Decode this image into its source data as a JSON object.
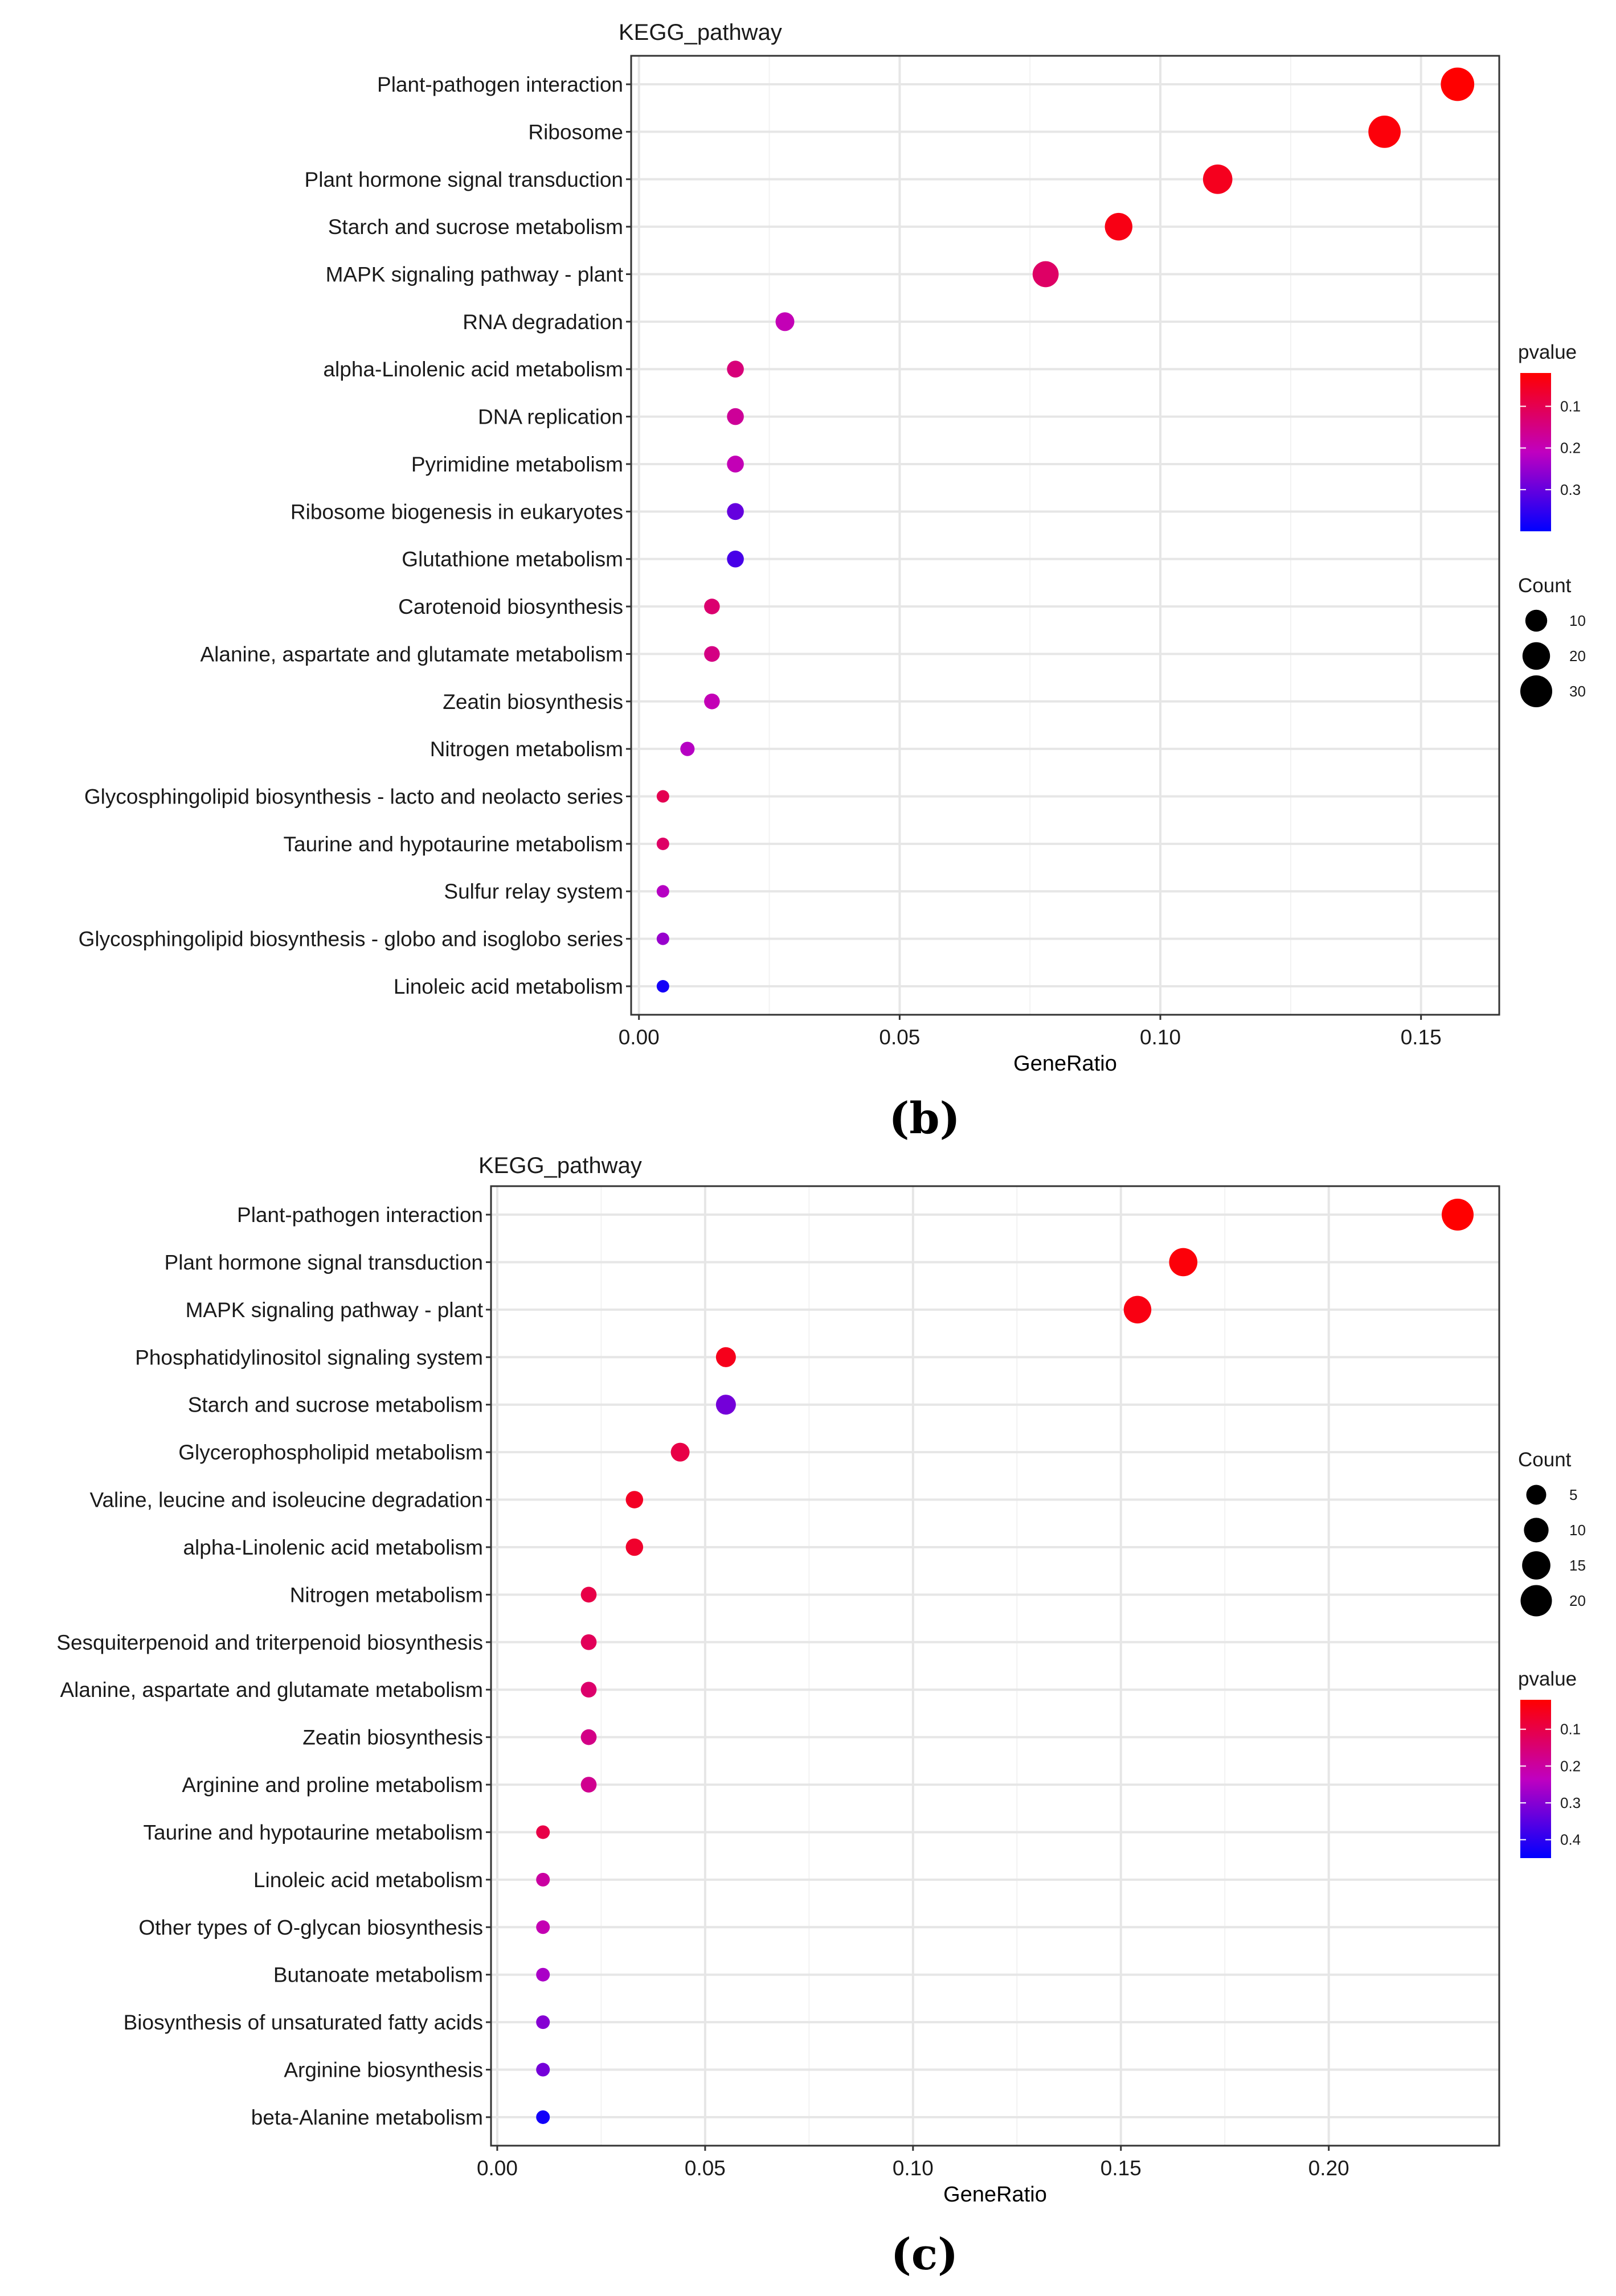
{
  "chart_data": [
    {
      "type": "scatter",
      "panel_label": "(b)",
      "title": "KEGG_pathway",
      "xlabel": "GeneRatio",
      "xlim": [
        -0.0015,
        0.165
      ],
      "xticks": [
        0.0,
        0.05,
        0.1,
        0.15
      ],
      "xtick_labels": [
        "0.00",
        "0.05",
        "0.10",
        "0.15"
      ],
      "pvalue_range": [
        0.02,
        0.4
      ],
      "count_range": [
        1,
        36
      ],
      "categories": [
        "Plant-pathogen interaction",
        "Ribosome",
        "Plant hormone signal transduction",
        "Starch and sucrose metabolism",
        "MAPK signaling pathway - plant",
        "RNA degradation",
        "alpha-Linolenic acid metabolism",
        "DNA replication",
        "Pyrimidine metabolism",
        "Ribosome biogenesis in eukaryotes",
        "Glutathione metabolism",
        "Carotenoid biosynthesis",
        "Alanine, aspartate and glutamate metabolism",
        "Zeatin biosynthesis",
        "Nitrogen metabolism",
        "Glycosphingolipid biosynthesis - lacto and neolacto series",
        "Taurine and hypotaurine metabolism",
        "Sulfur relay system",
        "Glycosphingolipid biosynthesis - globo and isoglobo series",
        "Linoleic acid metabolism"
      ],
      "gene_ratio": [
        0.157,
        0.143,
        0.111,
        0.092,
        0.078,
        0.028,
        0.0185,
        0.0185,
        0.0185,
        0.0185,
        0.0185,
        0.014,
        0.014,
        0.014,
        0.0093,
        0.0046,
        0.0046,
        0.0046,
        0.0046,
        0.0046
      ],
      "count": [
        34,
        31,
        24,
        20,
        17,
        6,
        4,
        4,
        4,
        4,
        4,
        3,
        3,
        3,
        2,
        1,
        1,
        1,
        1,
        1
      ],
      "pvalue": [
        0.02,
        0.03,
        0.05,
        0.04,
        0.12,
        0.2,
        0.14,
        0.17,
        0.2,
        0.3,
        0.33,
        0.13,
        0.15,
        0.2,
        0.22,
        0.1,
        0.12,
        0.22,
        0.25,
        0.38
      ],
      "legends": [
        {
          "kind": "color",
          "title": "pvalue",
          "labels": [
            "0.1",
            "0.2",
            "0.3"
          ],
          "values": [
            0.1,
            0.2,
            0.3
          ]
        },
        {
          "kind": "size",
          "title": "Count",
          "labels": [
            "10",
            "20",
            "30"
          ],
          "values": [
            10,
            20,
            30
          ]
        }
      ],
      "colors": {
        "low": "#ff0000",
        "mid": "#c000c0",
        "high": "#0000ff"
      }
    },
    {
      "type": "scatter",
      "panel_label": "(c)",
      "title": "KEGG_pathway",
      "xlabel": "GeneRatio",
      "xlim": [
        -0.0015,
        0.241
      ],
      "xticks": [
        0.0,
        0.05,
        0.1,
        0.15,
        0.2
      ],
      "xtick_labels": [
        "0.00",
        "0.05",
        "0.10",
        "0.15",
        "0.20"
      ],
      "pvalue_range": [
        0.02,
        0.45
      ],
      "count_range": [
        1,
        21
      ],
      "categories": [
        "Plant-pathogen interaction",
        "Plant hormone signal transduction",
        "MAPK signaling pathway - plant",
        "Phosphatidylinositol signaling system",
        "Starch and sucrose metabolism",
        "Glycerophospholipid metabolism",
        "Valine, leucine and isoleucine degradation",
        "alpha-Linolenic acid metabolism",
        "Nitrogen metabolism",
        "Sesquiterpenoid and triterpenoid biosynthesis",
        "Alanine, aspartate and glutamate metabolism",
        "Zeatin biosynthesis",
        "Arginine and proline metabolism",
        "Taurine and hypotaurine metabolism",
        "Linoleic acid metabolism",
        "Other types of O-glycan biosynthesis",
        "Butanoate metabolism",
        "Biosynthesis of unsaturated fatty acids",
        "Arginine biosynthesis",
        "beta-Alanine metabolism"
      ],
      "gene_ratio": [
        0.231,
        0.165,
        0.154,
        0.055,
        0.055,
        0.044,
        0.033,
        0.033,
        0.022,
        0.022,
        0.022,
        0.022,
        0.022,
        0.011,
        0.011,
        0.011,
        0.011,
        0.011,
        0.011,
        0.011
      ],
      "count": [
        21,
        15,
        14,
        5,
        5,
        4,
        3,
        3,
        2,
        2,
        2,
        2,
        2,
        1,
        1,
        1,
        1,
        1,
        1,
        1
      ],
      "pvalue": [
        0.02,
        0.03,
        0.04,
        0.05,
        0.32,
        0.1,
        0.06,
        0.07,
        0.1,
        0.12,
        0.14,
        0.17,
        0.18,
        0.1,
        0.2,
        0.22,
        0.26,
        0.3,
        0.32,
        0.43
      ],
      "legends": [
        {
          "kind": "size",
          "title": "Count",
          "labels": [
            "5",
            "10",
            "15",
            "20"
          ],
          "values": [
            5,
            10,
            15,
            20
          ]
        },
        {
          "kind": "color",
          "title": "pvalue",
          "labels": [
            "0.1",
            "0.2",
            "0.3",
            "0.4"
          ],
          "values": [
            0.1,
            0.2,
            0.3,
            0.4
          ]
        }
      ],
      "colors": {
        "low": "#ff0000",
        "mid": "#c000c0",
        "high": "#0000ff"
      }
    }
  ]
}
